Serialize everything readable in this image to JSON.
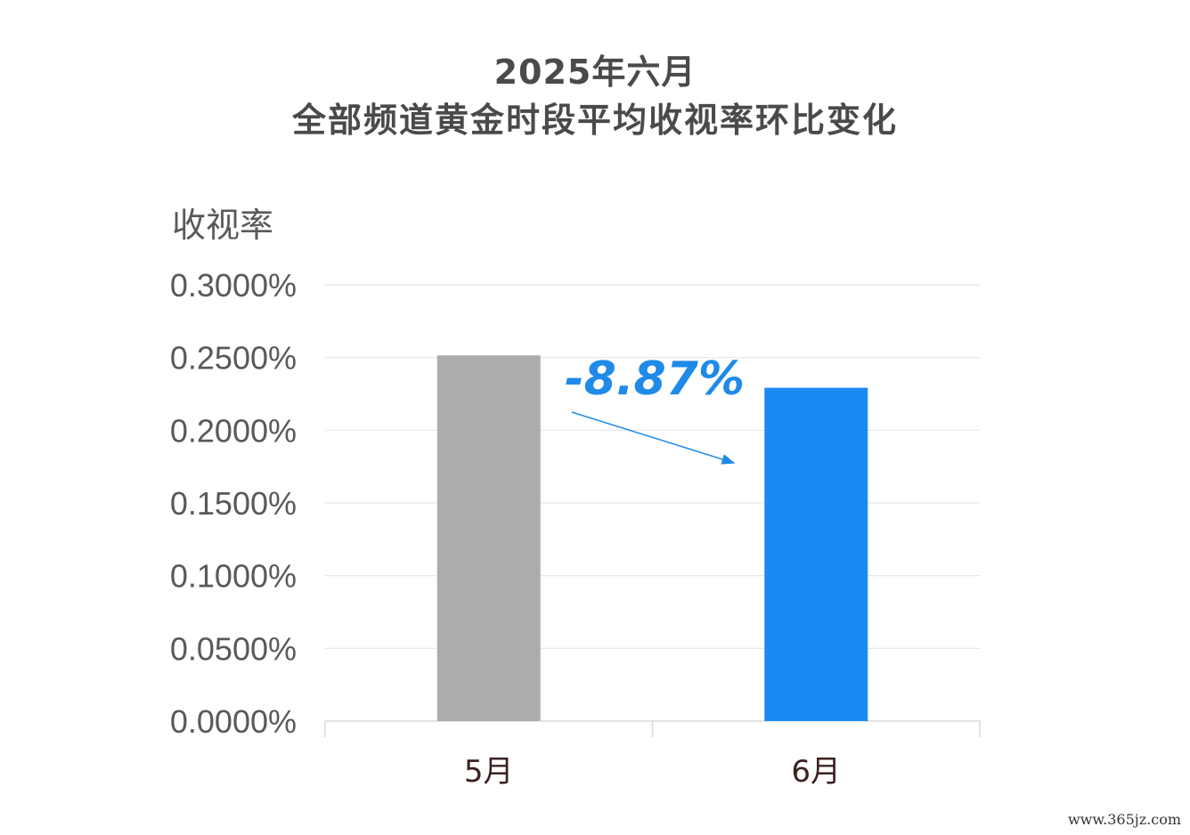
{
  "chart_data": {
    "type": "bar",
    "title": "2025年六月",
    "subtitle": "全部频道黄金时段平均收视率环比变化",
    "ylabel": "收视率",
    "xlabel": "",
    "categories": [
      "5月",
      "6月"
    ],
    "values": [
      0.2515,
      0.2292
    ],
    "unit": "%",
    "ylim": [
      0,
      0.3
    ],
    "yticks": [
      0,
      0.05,
      0.1,
      0.15,
      0.2,
      0.25,
      0.3
    ],
    "ytick_labels": [
      "0.0000%",
      "0.0500%",
      "0.1000%",
      "0.1500%",
      "0.2000%",
      "0.2500%",
      "0.3000%"
    ],
    "bar_colors": [
      "#aeabab",
      "#1a8af2"
    ],
    "annotation": "-8.87%",
    "annotation_color": "#1f8ae8",
    "grid": true,
    "legend": "none"
  },
  "watermark": "www.365jz.com"
}
